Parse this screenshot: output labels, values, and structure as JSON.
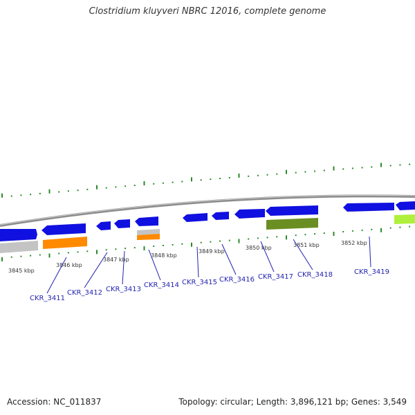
{
  "title": "Clostridium kluyveri NBRC 12016, complete genome",
  "footer": {
    "accession": "Accession: NC_011837",
    "summary": "Topology: circular; Length: 3,896,121 bp; Genes: 3,549"
  },
  "colors": {
    "blue_gene": "#1010e0",
    "orange": "#ff8a00",
    "grey": "#c4c4c4",
    "olive": "#6b8e23",
    "lime": "#aef03c",
    "tick": "#2a8a2a",
    "backbone": "#8c8c8c",
    "label": "#1f1fb0"
  },
  "kbp_labels": [
    {
      "text": "3845 kbp"
    },
    {
      "text": "3846 kbp"
    },
    {
      "text": "3847 kbp"
    },
    {
      "text": "3848 kbp"
    },
    {
      "text": "3849 kbp"
    },
    {
      "text": "3850 kbp"
    },
    {
      "text": "3851 kbp"
    },
    {
      "text": "3852 kbp"
    }
  ],
  "genes": [
    {
      "label": "CKR_3411"
    },
    {
      "label": "CKR_3412"
    },
    {
      "label": "CKR_3413"
    },
    {
      "label": "CKR_3414"
    },
    {
      "label": "CKR_3415"
    },
    {
      "label": "CKR_3416"
    },
    {
      "label": "CKR_3417"
    },
    {
      "label": "CKR_3418"
    },
    {
      "label": "CKR_3419"
    }
  ]
}
